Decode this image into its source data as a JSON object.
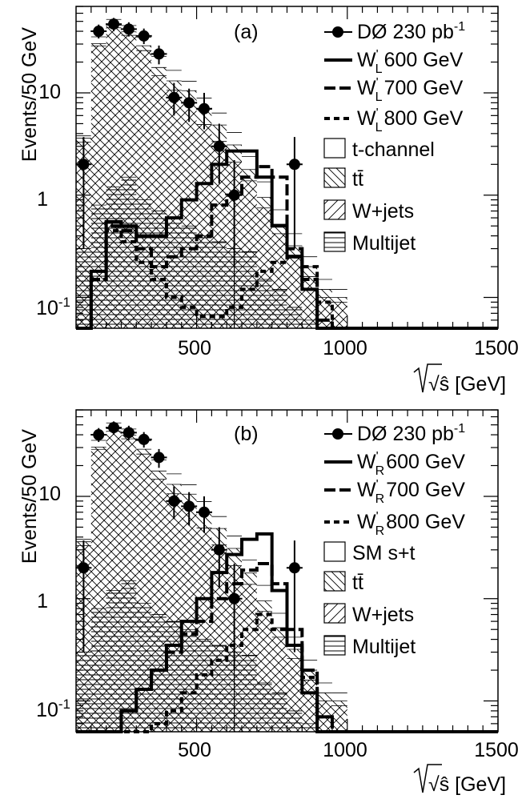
{
  "chart_data": [
    {
      "panel_label": "(a)",
      "type": "histogram",
      "ylabel": "Events/50 GeV",
      "xlabel": "√ŝ [GeV]",
      "yscale": "log",
      "xlim": [
        100,
        1500
      ],
      "ylim": [
        0.05,
        70
      ],
      "x_ticks": [
        "500",
        "1000",
        "1500"
      ],
      "y_ticks": [
        {
          "base": "10",
          "exp": "-1"
        },
        {
          "base": "1",
          "exp": ""
        },
        {
          "base": "10",
          "exp": ""
        }
      ],
      "bin_edges": [
        100,
        150,
        200,
        250,
        300,
        350,
        400,
        450,
        500,
        550,
        600,
        650,
        700,
        750,
        800,
        850,
        900,
        950,
        1000
      ],
      "stack": [
        {
          "name": "Multijet",
          "values": [
            0.3,
            0.8,
            1.2,
            1.5,
            0.9,
            0.7,
            0.6,
            0.5,
            0.4,
            0.35,
            0.3,
            0.28,
            0.15,
            0.12,
            0.08,
            0.06,
            0.05,
            0.05
          ]
        },
        {
          "name": "W+jets",
          "values": [
            3.0,
            28.0,
            42.0,
            35.0,
            25.0,
            14.0,
            10.0,
            7.5,
            4.5,
            3.0,
            1.8,
            1.1,
            0.6,
            0.3,
            0.18,
            0.1,
            0.05,
            0.04
          ]
        },
        {
          "name": "tt̄",
          "values": [
            0.3,
            1.5,
            2.5,
            3.0,
            3.0,
            3.0,
            2.5,
            2.5,
            2.0,
            1.5,
            1.0,
            0.4,
            0.2,
            0.1,
            0.06,
            0.04,
            0.02,
            0.01
          ]
        },
        {
          "name": "t-channel",
          "values": [
            0.2,
            5.0,
            6.5,
            6.0,
            6.0,
            5.0,
            3.5,
            2.5,
            2.0,
            1.5,
            1.0,
            0.6,
            0.4,
            0.2,
            0.1,
            0.05,
            0.03,
            0.02
          ]
        }
      ],
      "signals": [
        {
          "name": "W'L 600 GeV",
          "style": "solid",
          "values": [
            0.05,
            0.18,
            0.55,
            0.5,
            0.4,
            0.4,
            0.6,
            0.9,
            1.3,
            2.0,
            2.7,
            2.7,
            1.5,
            0.5,
            0.25,
            0.12,
            0.05,
            0.05
          ]
        },
        {
          "name": "W'L 700 GeV",
          "style": "dashed",
          "values": [
            0.05,
            0.15,
            0.5,
            0.45,
            0.3,
            0.2,
            0.25,
            0.3,
            0.4,
            0.8,
            1.0,
            1.5,
            1.9,
            1.5,
            0.3,
            0.15,
            0.06,
            0.05
          ]
        },
        {
          "name": "W'L 800 GeV",
          "style": "dotted",
          "values": [
            0.05,
            0.15,
            0.45,
            0.35,
            0.22,
            0.15,
            0.1,
            0.08,
            0.065,
            0.065,
            0.08,
            0.12,
            0.18,
            0.22,
            0.25,
            0.2,
            0.09,
            0.05
          ]
        }
      ],
      "data": {
        "name": "DØ 230 pb⁻¹",
        "x": [
          125,
          175,
          225,
          275,
          325,
          375,
          425,
          475,
          525,
          575,
          625,
          825
        ],
        "y": [
          2,
          40,
          47,
          42,
          36,
          24,
          9,
          8,
          7,
          3,
          1,
          2
        ],
        "err_lo": [
          1.7,
          6,
          7,
          6.5,
          6,
          5,
          3,
          2.8,
          2.6,
          1.7,
          0.8,
          1.7
        ],
        "err_hi": [
          1.7,
          6.5,
          7,
          7,
          6.5,
          5,
          3.5,
          3,
          3,
          2,
          1.2,
          1.7
        ]
      },
      "legend": {
        "data": {
          "text": "DØ 230 pb",
          "sup": "-1"
        },
        "signals": [
          {
            "main": "W",
            "sup": "'",
            "sub": "L",
            "text": "600 GeV"
          },
          {
            "main": "W",
            "sup": "'",
            "sub": "L",
            "text": "700 GeV"
          },
          {
            "main": "W",
            "sup": "'",
            "sub": "L",
            "text": "800 GeV"
          }
        ],
        "backgrounds": [
          "t-channel",
          "tt̄",
          "W+jets",
          "Multijet"
        ]
      }
    },
    {
      "panel_label": "(b)",
      "type": "histogram",
      "ylabel": "Events/50 GeV",
      "xlabel": "√ŝ [GeV]",
      "yscale": "log",
      "xlim": [
        100,
        1500
      ],
      "ylim": [
        0.05,
        70
      ],
      "x_ticks": [
        "500",
        "1000",
        "1500"
      ],
      "y_ticks": [
        {
          "base": "10",
          "exp": "-1"
        },
        {
          "base": "1",
          "exp": ""
        },
        {
          "base": "10",
          "exp": ""
        }
      ],
      "bin_edges": [
        100,
        150,
        200,
        250,
        300,
        350,
        400,
        450,
        500,
        550,
        600,
        650,
        700,
        750,
        800,
        850,
        900,
        950,
        1000
      ],
      "stack": [
        {
          "name": "Multijet",
          "values": [
            0.3,
            0.8,
            1.2,
            1.5,
            0.9,
            0.7,
            0.6,
            0.5,
            0.4,
            0.35,
            0.3,
            0.28,
            0.15,
            0.12,
            0.08,
            0.06,
            0.05,
            0.05
          ]
        },
        {
          "name": "W+jets",
          "values": [
            3.0,
            28.0,
            42.0,
            35.0,
            25.0,
            14.0,
            10.0,
            7.5,
            4.5,
            3.0,
            1.8,
            1.1,
            0.6,
            0.3,
            0.18,
            0.1,
            0.05,
            0.04
          ]
        },
        {
          "name": "tt̄",
          "values": [
            0.3,
            1.5,
            2.5,
            3.0,
            3.0,
            3.0,
            2.5,
            2.5,
            2.0,
            1.5,
            1.0,
            0.4,
            0.2,
            0.1,
            0.06,
            0.04,
            0.02,
            0.01
          ]
        },
        {
          "name": "SM s+t",
          "values": [
            0.2,
            5.0,
            6.5,
            6.0,
            6.0,
            5.0,
            3.5,
            2.5,
            2.0,
            1.5,
            1.0,
            0.6,
            0.4,
            0.2,
            0.1,
            0.05,
            0.03,
            0.02
          ]
        }
      ],
      "signals": [
        {
          "name": "W'R 600 GeV",
          "style": "solid",
          "values": [
            0.05,
            0.05,
            0.05,
            0.08,
            0.13,
            0.2,
            0.35,
            0.6,
            1.0,
            1.8,
            2.7,
            3.8,
            4.3,
            1.2,
            0.35,
            0.12,
            0.05,
            0.05
          ]
        },
        {
          "name": "W'R 700 GeV",
          "style": "dashed",
          "values": [
            0.05,
            0.05,
            0.05,
            0.08,
            0.13,
            0.2,
            0.3,
            0.45,
            0.6,
            1.0,
            1.4,
            1.9,
            2.2,
            1.4,
            0.5,
            0.2,
            0.07,
            0.05
          ]
        },
        {
          "name": "W'R 800 GeV",
          "style": "dotted",
          "values": [
            0.05,
            0.05,
            0.05,
            0.05,
            0.05,
            0.06,
            0.08,
            0.12,
            0.18,
            0.25,
            0.35,
            0.5,
            0.7,
            0.5,
            0.35,
            0.17,
            0.07,
            0.05
          ]
        }
      ],
      "data": {
        "name": "DØ 230 pb⁻¹",
        "x": [
          125,
          175,
          225,
          275,
          325,
          375,
          425,
          475,
          525,
          575,
          625,
          825
        ],
        "y": [
          2,
          40,
          47,
          42,
          36,
          24,
          9,
          8,
          7,
          3,
          1,
          2
        ],
        "err_lo": [
          1.7,
          6,
          7,
          6.5,
          6,
          5,
          3,
          2.8,
          2.6,
          1.7,
          0.8,
          1.7
        ],
        "err_hi": [
          1.7,
          6.5,
          7,
          7,
          6.5,
          5,
          3.5,
          3,
          3,
          2,
          1.2,
          1.7
        ]
      },
      "legend": {
        "data": {
          "text": "DØ 230 pb",
          "sup": "-1"
        },
        "signals": [
          {
            "main": "W",
            "sup": "'",
            "sub": "R",
            "text": "600 GeV"
          },
          {
            "main": "W",
            "sup": "'",
            "sub": "R",
            "text": "700 GeV"
          },
          {
            "main": "W",
            "sup": "'",
            "sub": "R",
            "text": "800 GeV"
          }
        ],
        "backgrounds": [
          "SM s+t",
          "tt̄",
          "W+jets",
          "Multijet"
        ]
      }
    }
  ]
}
